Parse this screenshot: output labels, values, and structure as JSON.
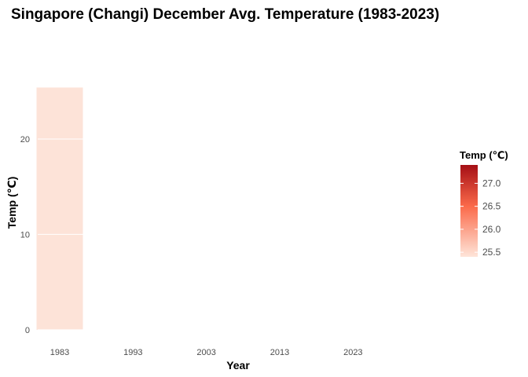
{
  "chart_data": {
    "type": "bar",
    "title": "Singapore (Changi) December Avg. Temperature (1983-2023)",
    "xlabel": "Year",
    "ylabel": "Temp (℃)",
    "x_ticks": [
      "1983",
      "1993",
      "2003",
      "2013",
      "2023"
    ],
    "x_range": [
      1980,
      2034
    ],
    "y_ticks": [
      0,
      10,
      20
    ],
    "ylim": [
      -1,
      27
    ],
    "grid": "horizontal major gridlines",
    "bars": [
      {
        "x": 1983,
        "value": 25.4,
        "color": "#fde3d8"
      }
    ],
    "legend": {
      "title": "Temp (℃)",
      "placement": "right",
      "type": "continuous color bar",
      "ticks": [
        "25.5",
        "26.0",
        "26.5",
        "27.0"
      ],
      "range": [
        25.4,
        27.4
      ],
      "color_low": "#fee5d9",
      "color_mid": "#fb6a4a",
      "color_high": "#a50f15"
    }
  }
}
